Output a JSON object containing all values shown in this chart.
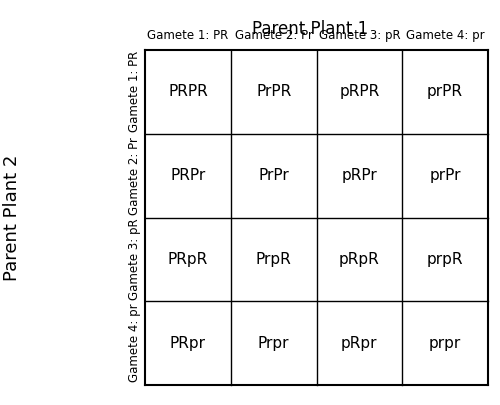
{
  "title": "Parent Plant 1",
  "ylabel": "Parent Plant 2",
  "col_headers": [
    "Gamete 1: PR",
    "Gamete 2: Pr",
    "Gamete 3: pR",
    "Gamete 4: pr"
  ],
  "row_headers": [
    "Gamete 1: PR",
    "Gamete 2: Pr",
    "Gamete 3: pR",
    "Gamete 4: pr"
  ],
  "cells": [
    [
      "PRPR",
      "PrPR",
      "pRPR",
      "prPR"
    ],
    [
      "PRPr",
      "PrPr",
      "pRPr",
      "prPr"
    ],
    [
      "PRpR",
      "PrpR",
      "pRpR",
      "prpR"
    ],
    [
      "PRpr",
      "Prpr",
      "pRpr",
      "prpr"
    ]
  ],
  "background_color": "#ffffff",
  "cell_text_color": "#000000",
  "header_text_color": "#000000",
  "grid_color": "#000000",
  "title_fontsize": 12,
  "header_fontsize": 8.5,
  "cell_fontsize": 11,
  "ylabel_fontsize": 13
}
